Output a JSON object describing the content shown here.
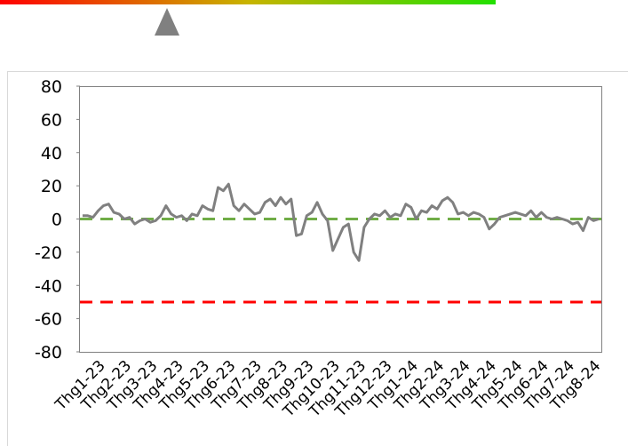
{
  "chart_data": {
    "type": "line",
    "categories": [
      "Thg1-23",
      null,
      null,
      null,
      null,
      "Thg2-23",
      null,
      null,
      null,
      null,
      "Thg3-23",
      null,
      null,
      null,
      null,
      "Thg4-23",
      null,
      null,
      null,
      null,
      "Thg5-23",
      null,
      null,
      null,
      null,
      "Thg6-23",
      null,
      null,
      null,
      null,
      "Thg7-23",
      null,
      null,
      null,
      null,
      "Thg8-23",
      null,
      null,
      null,
      null,
      "Thg9-23",
      null,
      null,
      null,
      null,
      "Thg10-23",
      null,
      null,
      null,
      null,
      "Thg11-23",
      null,
      null,
      null,
      null,
      "Thg12-23",
      null,
      null,
      null,
      null,
      "Thg1-24",
      null,
      null,
      null,
      null,
      "Thg2-24",
      null,
      null,
      null,
      null,
      "Thg3-24",
      null,
      null,
      null,
      null,
      "Thg4-24",
      null,
      null,
      null,
      null,
      "Thg5-24",
      null,
      null,
      null,
      null,
      "Thg6-24",
      null,
      null,
      null,
      null,
      "Thg7-24",
      null,
      null,
      null,
      null,
      "Thg8-24",
      null,
      null,
      null,
      null
    ],
    "series": [
      {
        "color": "#808080",
        "values": [
          2,
          2,
          1,
          5,
          8,
          9,
          4,
          3,
          0,
          1,
          -3,
          -1,
          0,
          -2,
          -1,
          2,
          8,
          3,
          1,
          2,
          -1,
          3,
          2,
          8,
          6,
          5,
          19,
          17,
          21,
          8,
          5,
          9,
          6,
          3,
          4,
          10,
          12,
          8,
          13,
          9,
          12,
          -10,
          -9,
          2,
          4,
          10,
          3,
          -1,
          -19,
          -12,
          -5,
          -3,
          -20,
          -25,
          -5,
          0,
          3,
          2,
          5,
          1,
          3,
          2,
          9,
          7,
          0,
          5,
          4,
          8,
          6,
          11,
          13,
          10,
          3,
          4,
          2,
          4,
          3,
          1,
          -6,
          -3,
          1,
          2,
          3,
          4,
          3,
          2,
          5,
          1,
          4,
          1,
          0,
          1,
          0,
          -1,
          -3,
          -2,
          -7,
          1,
          -1,
          0
        ]
      }
    ],
    "hlines": [
      {
        "value": 0,
        "color": "#70ad47"
      },
      {
        "value": -50,
        "color": "#ff0000"
      }
    ],
    "ylim": [
      -80,
      80
    ],
    "yticks": [
      -80,
      -60,
      -40,
      -20,
      0,
      20,
      40,
      60,
      80
    ]
  }
}
